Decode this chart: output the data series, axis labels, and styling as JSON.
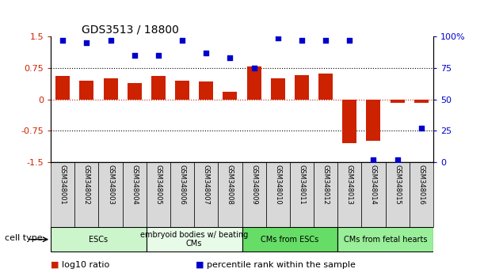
{
  "title": "GDS3513 / 18800",
  "samples": [
    "GSM348001",
    "GSM348002",
    "GSM348003",
    "GSM348004",
    "GSM348005",
    "GSM348006",
    "GSM348007",
    "GSM348008",
    "GSM348009",
    "GSM348010",
    "GSM348011",
    "GSM348012",
    "GSM348013",
    "GSM348014",
    "GSM348015",
    "GSM348016"
  ],
  "log10_ratio": [
    0.55,
    0.45,
    0.5,
    0.38,
    0.55,
    0.45,
    0.42,
    0.18,
    0.78,
    0.5,
    0.58,
    0.62,
    -1.05,
    -0.98,
    -0.08,
    -0.08
  ],
  "percentile_rank": [
    97,
    95,
    97,
    85,
    85,
    97,
    87,
    83,
    75,
    99,
    97,
    97,
    97,
    2,
    2,
    27
  ],
  "ylim_left": [
    -1.5,
    1.5
  ],
  "ylim_right": [
    0,
    100
  ],
  "bar_color": "#cc2200",
  "dot_color": "#0000cc",
  "dotted_lines": [
    0.75,
    -0.75
  ],
  "zero_line_color": "#cc2200",
  "cell_type_groups": [
    {
      "label": "ESCs",
      "start": 0,
      "end": 3,
      "color": "#ccf5cc"
    },
    {
      "label": "embryoid bodies w/ beating\nCMs",
      "start": 4,
      "end": 7,
      "color": "#e8fae8"
    },
    {
      "label": "CMs from ESCs",
      "start": 8,
      "end": 11,
      "color": "#66dd66"
    },
    {
      "label": "CMs from fetal hearts",
      "start": 12,
      "end": 15,
      "color": "#99ee99"
    }
  ],
  "legend_items": [
    {
      "color": "#cc2200",
      "label": "log10 ratio"
    },
    {
      "color": "#0000cc",
      "label": "percentile rank within the sample"
    }
  ],
  "tick_left": [
    -1.5,
    -0.75,
    0,
    0.75,
    1.5
  ],
  "tick_right": [
    0,
    25,
    50,
    75,
    100
  ],
  "tick_right_labels": [
    "0",
    "25",
    "50",
    "75",
    "100%"
  ],
  "label_box_color": "#d8d8d8"
}
